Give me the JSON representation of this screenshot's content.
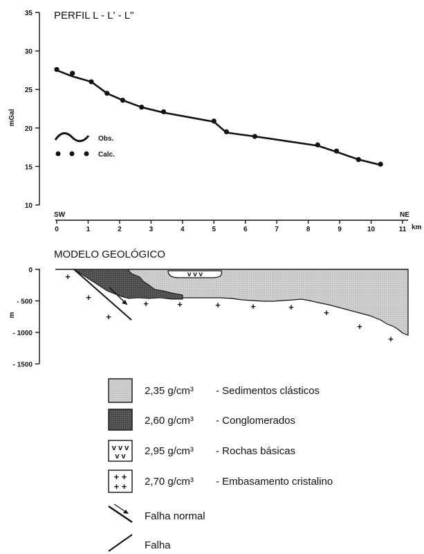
{
  "profile": {
    "title": "PERFIL  L - L' - L\"",
    "ylabel": "mGal",
    "y_ticks": [
      "35",
      "30",
      "25",
      "20",
      "15",
      "10"
    ],
    "x_ticks": [
      "0",
      "1",
      "2",
      "3",
      "4",
      "5",
      "6",
      "7",
      "8",
      "9",
      "10",
      "11"
    ],
    "x_unit": "km",
    "sw_label": "SW",
    "ne_label": "NE",
    "legend_obs": "Obs.",
    "legend_calc": "Calc."
  },
  "chart_data": {
    "type": "line",
    "xlim": [
      0,
      11
    ],
    "ylim": [
      10,
      35
    ],
    "series": [
      {
        "name": "Obs.",
        "x": [
          0,
          0.5,
          1.1,
          1.6,
          2.1,
          2.7,
          3.4,
          4.2,
          5.0,
          5.2,
          5.4,
          6.3,
          7.3,
          8.3,
          8.9,
          9.6,
          10.3
        ],
        "y": [
          27.5,
          26.7,
          26.0,
          24.5,
          23.6,
          22.7,
          22.0,
          21.4,
          20.8,
          20.1,
          19.4,
          18.9,
          18.3,
          17.7,
          16.9,
          15.9,
          15.2
        ]
      },
      {
        "name": "Calc.",
        "x": [
          0,
          0.5,
          1.1,
          1.6,
          2.1,
          2.7,
          3.4,
          5.0,
          5.4,
          6.3,
          8.3,
          8.9,
          9.6,
          10.3
        ],
        "y": [
          27.6,
          27.1,
          26.0,
          24.5,
          23.6,
          22.7,
          22.1,
          20.9,
          19.5,
          18.9,
          17.8,
          17.0,
          15.9,
          15.3
        ]
      }
    ]
  },
  "model": {
    "title": "MODELO GEOLÓGICO",
    "ylabel": "m",
    "y_ticks": [
      "0",
      "- 500",
      "- 1000",
      "- 1500"
    ],
    "basic_rock_marks": "v  v  v"
  },
  "legend": [
    {
      "density": "2,35 g/cm³",
      "name": "- Sedimentos clásticos",
      "fill": "#c4c4c4"
    },
    {
      "density": "2,60 g/cm³",
      "name": "- Conglomerados",
      "fill": "#555555"
    },
    {
      "density": "2,95 g/cm³",
      "name": "- Rochas básicas",
      "symbol": "v"
    },
    {
      "density": "2,70 g/cm³",
      "name": "- Embasamento cristalino",
      "symbol": "+"
    }
  ],
  "legend_lines": [
    {
      "name": "Falha normal"
    },
    {
      "name": "Falha"
    }
  ],
  "colors": {
    "sediment": "#c4c4c4",
    "conglomerate": "#555555",
    "ink": "#111111"
  }
}
